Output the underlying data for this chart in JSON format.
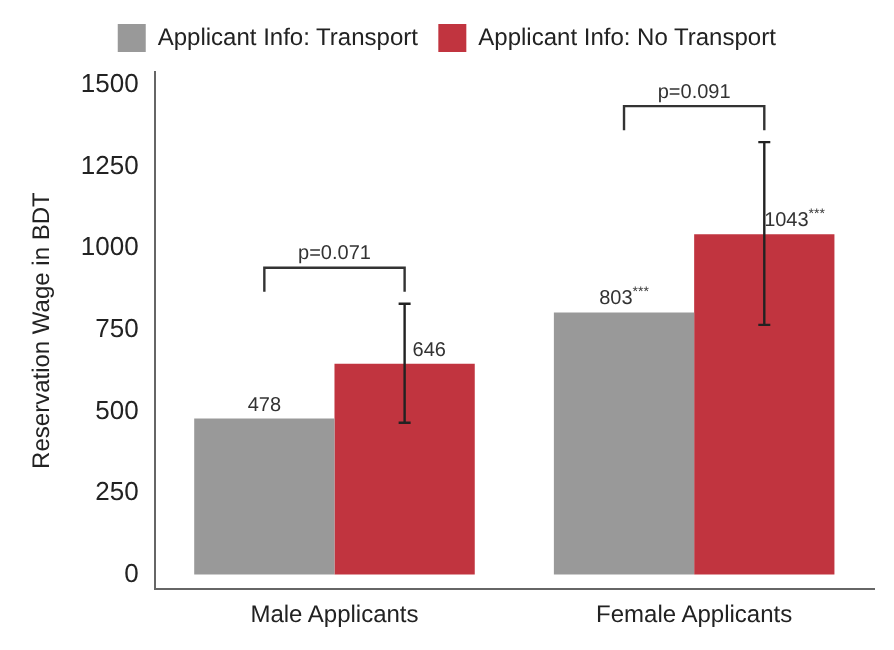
{
  "chart_data": {
    "type": "bar",
    "ylabel": "Reservation Wage in BDT",
    "categories": [
      "Male Applicants",
      "Female Applicants"
    ],
    "series": [
      {
        "name": "Applicant Info: Transport",
        "color": "#999999",
        "values": [
          478,
          803
        ],
        "value_labels": [
          "478",
          "803$^{***}$"
        ]
      },
      {
        "name": "Applicant Info: No Transport",
        "color": "#c1343f",
        "values": [
          646,
          1043
        ],
        "value_labels": [
          "646",
          "1043$^{***}$"
        ],
        "errors": [
          [
            465,
            830
          ],
          [
            765,
            1325
          ]
        ]
      }
    ],
    "ylim": [
      -45,
      1540
    ],
    "yticks": [
      0,
      250,
      500,
      750,
      1000,
      1250,
      1500
    ],
    "annotations": [
      "p=0.071",
      "p=0.091"
    ],
    "grid": false,
    "legend": "top"
  }
}
